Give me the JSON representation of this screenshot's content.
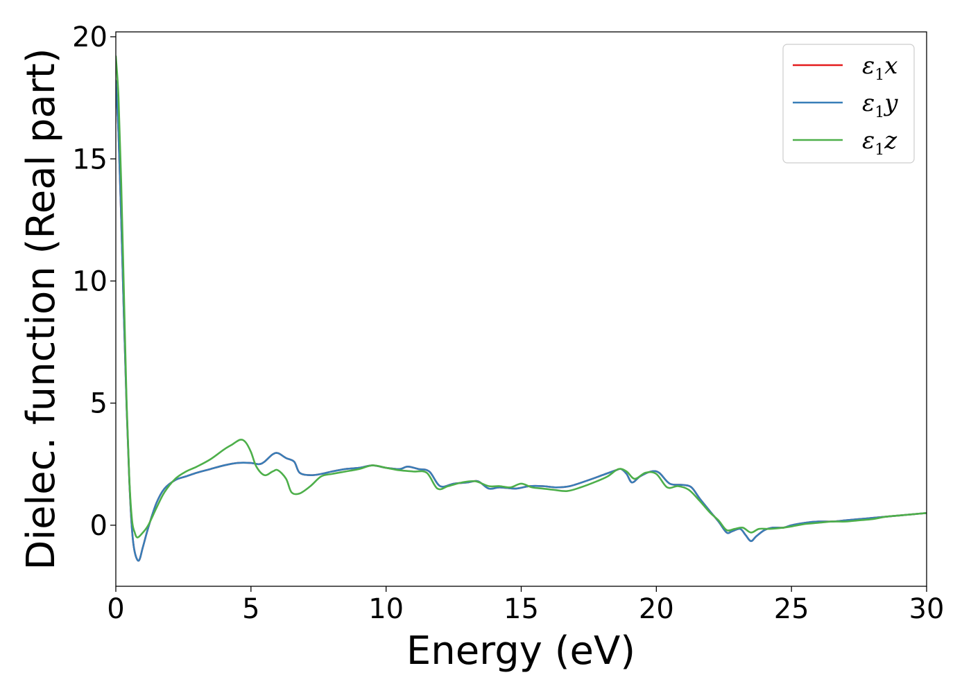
{
  "chart_data": {
    "type": "line",
    "xlabel": "Energy (eV)",
    "ylabel": "Dielec. function (Real part)",
    "xlim": [
      0,
      30
    ],
    "ylim": [
      -2.5,
      20.2
    ],
    "xticks": [
      0,
      5,
      10,
      15,
      20,
      25,
      30
    ],
    "yticks": [
      0,
      5,
      10,
      15,
      20
    ],
    "grid": false,
    "legend_position": "top-right",
    "series": [
      {
        "name": "ε1x",
        "legend_base": "ε",
        "legend_sub": "1",
        "legend_suffix": "x",
        "color": "#e41a1c",
        "points": [
          [
            0,
            18.2
          ],
          [
            0.1,
            16.0
          ],
          [
            0.2,
            12.5
          ],
          [
            0.3,
            8.5
          ],
          [
            0.4,
            4.8
          ],
          [
            0.5,
            1.8
          ],
          [
            0.6,
            -0.2
          ],
          [
            0.7,
            -1.1
          ],
          [
            0.85,
            -1.45
          ],
          [
            1.0,
            -0.9
          ],
          [
            1.2,
            -0.1
          ],
          [
            1.5,
            0.9
          ],
          [
            1.8,
            1.5
          ],
          [
            2.2,
            1.85
          ],
          [
            2.6,
            2.0
          ],
          [
            3.0,
            2.15
          ],
          [
            3.5,
            2.3
          ],
          [
            4.0,
            2.45
          ],
          [
            4.5,
            2.55
          ],
          [
            5.0,
            2.55
          ],
          [
            5.3,
            2.5
          ],
          [
            5.5,
            2.6
          ],
          [
            5.8,
            2.9
          ],
          [
            6.0,
            2.95
          ],
          [
            6.3,
            2.75
          ],
          [
            6.6,
            2.6
          ],
          [
            6.8,
            2.15
          ],
          [
            7.2,
            2.05
          ],
          [
            7.6,
            2.1
          ],
          [
            8.0,
            2.2
          ],
          [
            8.5,
            2.3
          ],
          [
            9.0,
            2.35
          ],
          [
            9.5,
            2.45
          ],
          [
            10.0,
            2.35
          ],
          [
            10.5,
            2.3
          ],
          [
            10.8,
            2.4
          ],
          [
            11.2,
            2.3
          ],
          [
            11.6,
            2.2
          ],
          [
            12.0,
            1.6
          ],
          [
            12.5,
            1.7
          ],
          [
            13.0,
            1.75
          ],
          [
            13.4,
            1.8
          ],
          [
            13.8,
            1.5
          ],
          [
            14.2,
            1.55
          ],
          [
            14.8,
            1.5
          ],
          [
            15.3,
            1.6
          ],
          [
            15.8,
            1.6
          ],
          [
            16.3,
            1.55
          ],
          [
            16.8,
            1.6
          ],
          [
            17.5,
            1.85
          ],
          [
            18.0,
            2.05
          ],
          [
            18.5,
            2.25
          ],
          [
            18.7,
            2.3
          ],
          [
            18.9,
            2.1
          ],
          [
            19.1,
            1.75
          ],
          [
            19.4,
            2.0
          ],
          [
            19.8,
            2.2
          ],
          [
            20.1,
            2.15
          ],
          [
            20.5,
            1.7
          ],
          [
            21.0,
            1.65
          ],
          [
            21.3,
            1.55
          ],
          [
            21.6,
            1.1
          ],
          [
            22.0,
            0.55
          ],
          [
            22.3,
            0.15
          ],
          [
            22.6,
            -0.3
          ],
          [
            22.8,
            -0.25
          ],
          [
            23.1,
            -0.15
          ],
          [
            23.3,
            -0.4
          ],
          [
            23.5,
            -0.65
          ],
          [
            23.7,
            -0.45
          ],
          [
            24.0,
            -0.2
          ],
          [
            24.3,
            -0.1
          ],
          [
            24.7,
            -0.1
          ],
          [
            25.0,
            0.0
          ],
          [
            25.5,
            0.1
          ],
          [
            26.0,
            0.15
          ],
          [
            26.5,
            0.15
          ],
          [
            27.0,
            0.2
          ],
          [
            27.5,
            0.25
          ],
          [
            28.0,
            0.3
          ],
          [
            28.5,
            0.35
          ],
          [
            29.0,
            0.4
          ],
          [
            29.5,
            0.45
          ],
          [
            30.0,
            0.5
          ]
        ]
      },
      {
        "name": "ε1y",
        "legend_base": "ε",
        "legend_sub": "1",
        "legend_suffix": "y",
        "color": "#377eb8",
        "points": [
          [
            0,
            18.2
          ],
          [
            0.1,
            16.0
          ],
          [
            0.2,
            12.5
          ],
          [
            0.3,
            8.5
          ],
          [
            0.4,
            4.8
          ],
          [
            0.5,
            1.8
          ],
          [
            0.6,
            -0.2
          ],
          [
            0.7,
            -1.1
          ],
          [
            0.85,
            -1.45
          ],
          [
            1.0,
            -0.9
          ],
          [
            1.2,
            -0.1
          ],
          [
            1.5,
            0.9
          ],
          [
            1.8,
            1.5
          ],
          [
            2.2,
            1.85
          ],
          [
            2.6,
            2.0
          ],
          [
            3.0,
            2.15
          ],
          [
            3.5,
            2.3
          ],
          [
            4.0,
            2.45
          ],
          [
            4.5,
            2.55
          ],
          [
            5.0,
            2.55
          ],
          [
            5.3,
            2.5
          ],
          [
            5.5,
            2.6
          ],
          [
            5.8,
            2.9
          ],
          [
            6.0,
            2.95
          ],
          [
            6.3,
            2.75
          ],
          [
            6.6,
            2.6
          ],
          [
            6.8,
            2.15
          ],
          [
            7.2,
            2.05
          ],
          [
            7.6,
            2.1
          ],
          [
            8.0,
            2.2
          ],
          [
            8.5,
            2.3
          ],
          [
            9.0,
            2.35
          ],
          [
            9.5,
            2.45
          ],
          [
            10.0,
            2.35
          ],
          [
            10.5,
            2.3
          ],
          [
            10.8,
            2.4
          ],
          [
            11.2,
            2.3
          ],
          [
            11.6,
            2.2
          ],
          [
            12.0,
            1.6
          ],
          [
            12.5,
            1.7
          ],
          [
            13.0,
            1.75
          ],
          [
            13.4,
            1.8
          ],
          [
            13.8,
            1.5
          ],
          [
            14.2,
            1.55
          ],
          [
            14.8,
            1.5
          ],
          [
            15.3,
            1.6
          ],
          [
            15.8,
            1.6
          ],
          [
            16.3,
            1.55
          ],
          [
            16.8,
            1.6
          ],
          [
            17.5,
            1.85
          ],
          [
            18.0,
            2.05
          ],
          [
            18.5,
            2.25
          ],
          [
            18.7,
            2.3
          ],
          [
            18.9,
            2.1
          ],
          [
            19.1,
            1.75
          ],
          [
            19.4,
            2.0
          ],
          [
            19.8,
            2.2
          ],
          [
            20.1,
            2.15
          ],
          [
            20.5,
            1.7
          ],
          [
            21.0,
            1.65
          ],
          [
            21.3,
            1.55
          ],
          [
            21.6,
            1.1
          ],
          [
            22.0,
            0.55
          ],
          [
            22.3,
            0.15
          ],
          [
            22.6,
            -0.3
          ],
          [
            22.8,
            -0.25
          ],
          [
            23.1,
            -0.15
          ],
          [
            23.3,
            -0.4
          ],
          [
            23.5,
            -0.65
          ],
          [
            23.7,
            -0.45
          ],
          [
            24.0,
            -0.2
          ],
          [
            24.3,
            -0.1
          ],
          [
            24.7,
            -0.1
          ],
          [
            25.0,
            0.0
          ],
          [
            25.5,
            0.1
          ],
          [
            26.0,
            0.15
          ],
          [
            26.5,
            0.15
          ],
          [
            27.0,
            0.2
          ],
          [
            27.5,
            0.25
          ],
          [
            28.0,
            0.3
          ],
          [
            28.5,
            0.35
          ],
          [
            29.0,
            0.4
          ],
          [
            29.5,
            0.45
          ],
          [
            30.0,
            0.5
          ]
        ]
      },
      {
        "name": "ε1z",
        "legend_base": "ε",
        "legend_sub": "1",
        "legend_suffix": "z",
        "color": "#4daf4a",
        "points": [
          [
            0,
            19.2
          ],
          [
            0.1,
            17.5
          ],
          [
            0.2,
            14.0
          ],
          [
            0.3,
            9.5
          ],
          [
            0.4,
            5.0
          ],
          [
            0.5,
            1.9
          ],
          [
            0.6,
            0.2
          ],
          [
            0.7,
            -0.3
          ],
          [
            0.8,
            -0.5
          ],
          [
            1.0,
            -0.3
          ],
          [
            1.2,
            0.0
          ],
          [
            1.5,
            0.7
          ],
          [
            1.8,
            1.35
          ],
          [
            2.2,
            1.9
          ],
          [
            2.6,
            2.2
          ],
          [
            3.0,
            2.4
          ],
          [
            3.5,
            2.7
          ],
          [
            4.0,
            3.1
          ],
          [
            4.3,
            3.3
          ],
          [
            4.6,
            3.5
          ],
          [
            4.8,
            3.4
          ],
          [
            5.0,
            3.0
          ],
          [
            5.2,
            2.4
          ],
          [
            5.5,
            2.05
          ],
          [
            5.8,
            2.2
          ],
          [
            6.0,
            2.25
          ],
          [
            6.3,
            1.9
          ],
          [
            6.5,
            1.35
          ],
          [
            6.8,
            1.3
          ],
          [
            7.2,
            1.6
          ],
          [
            7.6,
            2.0
          ],
          [
            8.0,
            2.1
          ],
          [
            8.5,
            2.2
          ],
          [
            9.0,
            2.3
          ],
          [
            9.5,
            2.45
          ],
          [
            10.0,
            2.35
          ],
          [
            10.5,
            2.25
          ],
          [
            11.0,
            2.2
          ],
          [
            11.5,
            2.15
          ],
          [
            11.9,
            1.5
          ],
          [
            12.3,
            1.6
          ],
          [
            12.8,
            1.75
          ],
          [
            13.3,
            1.8
          ],
          [
            13.8,
            1.6
          ],
          [
            14.2,
            1.6
          ],
          [
            14.6,
            1.55
          ],
          [
            15.0,
            1.7
          ],
          [
            15.4,
            1.55
          ],
          [
            15.8,
            1.5
          ],
          [
            16.2,
            1.45
          ],
          [
            16.7,
            1.4
          ],
          [
            17.2,
            1.55
          ],
          [
            17.8,
            1.8
          ],
          [
            18.2,
            2.0
          ],
          [
            18.6,
            2.3
          ],
          [
            18.9,
            2.2
          ],
          [
            19.2,
            1.9
          ],
          [
            19.6,
            2.15
          ],
          [
            20.0,
            2.1
          ],
          [
            20.4,
            1.55
          ],
          [
            20.8,
            1.6
          ],
          [
            21.2,
            1.45
          ],
          [
            21.6,
            1.0
          ],
          [
            22.0,
            0.5
          ],
          [
            22.3,
            0.2
          ],
          [
            22.6,
            -0.2
          ],
          [
            22.9,
            -0.15
          ],
          [
            23.2,
            -0.1
          ],
          [
            23.5,
            -0.3
          ],
          [
            23.8,
            -0.15
          ],
          [
            24.2,
            -0.15
          ],
          [
            24.7,
            -0.1
          ],
          [
            25.0,
            -0.05
          ],
          [
            25.5,
            0.05
          ],
          [
            26.0,
            0.1
          ],
          [
            26.5,
            0.15
          ],
          [
            27.0,
            0.15
          ],
          [
            27.5,
            0.2
          ],
          [
            28.0,
            0.25
          ],
          [
            28.5,
            0.35
          ],
          [
            29.0,
            0.4
          ],
          [
            29.5,
            0.45
          ],
          [
            30.0,
            0.5
          ]
        ]
      }
    ]
  }
}
